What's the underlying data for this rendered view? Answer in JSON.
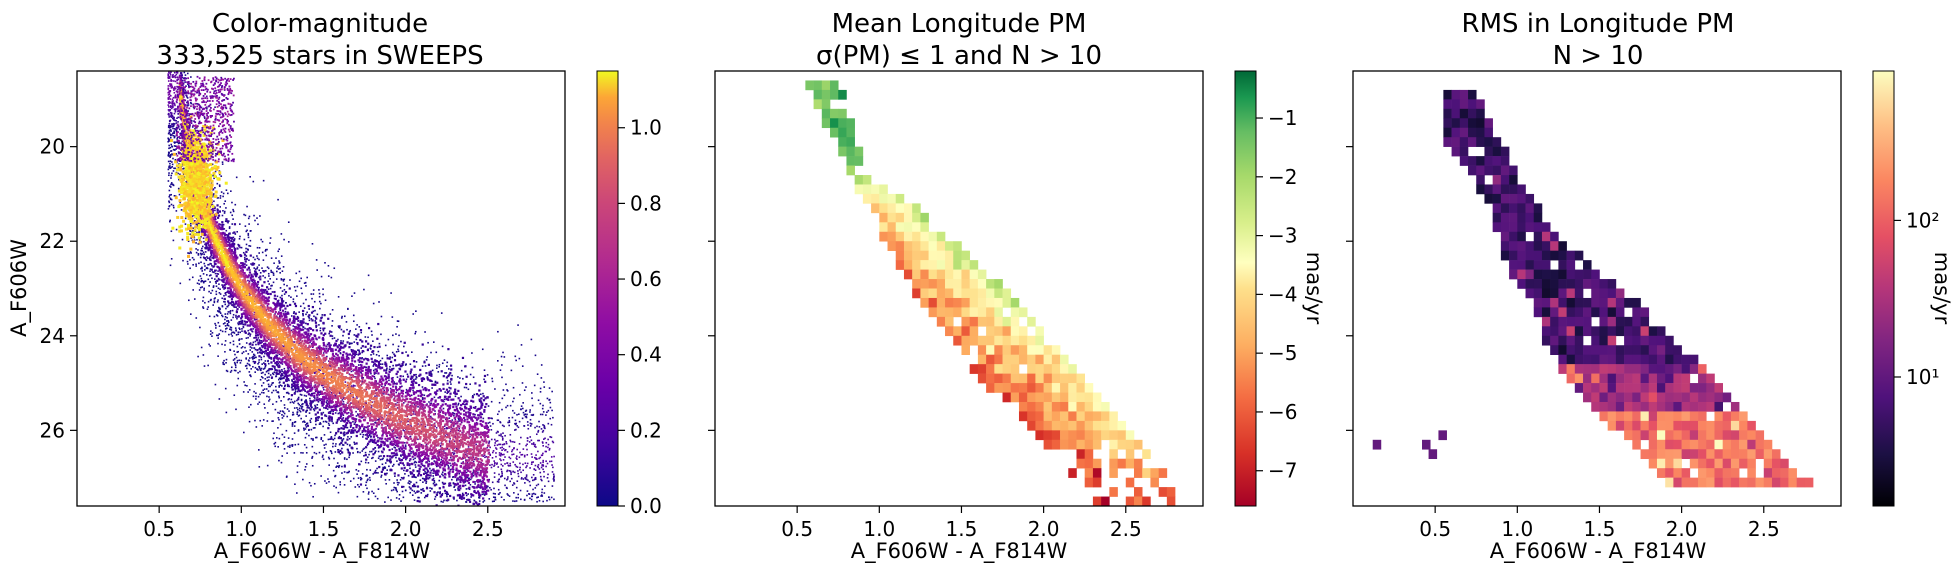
{
  "chart_data": [
    {
      "type": "scatter",
      "title_lines": [
        "Color-magnitude",
        "333,525 stars in SWEEPS"
      ],
      "xlabel": "A_F606W - A_F814W",
      "ylabel": "A_F606W",
      "xlim": [
        0.0,
        2.97
      ],
      "ylim": [
        27.6,
        18.4
      ],
      "x_ticks": [
        0.5,
        1.0,
        1.5,
        2.0,
        2.5
      ],
      "x_tick_labels": [
        "0.5",
        "1.0",
        "1.5",
        "2.0",
        "2.5"
      ],
      "y_ticks": [
        20,
        22,
        24,
        26
      ],
      "y_tick_labels": [
        "20",
        "22",
        "24",
        "26"
      ],
      "colormap": "plasma",
      "colorbar": {
        "range": [
          0.0,
          1.15
        ],
        "ticks": [
          0.0,
          0.2,
          0.4,
          0.6,
          0.8,
          1.0
        ],
        "tick_labels": [
          "0.0",
          "0.2",
          "0.4",
          "0.6",
          "0.8",
          "1.0"
        ],
        "label": ""
      },
      "ridge": {
        "x": [
          0.62,
          0.66,
          0.7,
          0.75,
          0.82,
          0.9,
          1.0,
          1.15,
          1.35,
          1.55,
          1.75,
          1.95,
          2.15,
          2.35,
          2.5
        ],
        "y": [
          18.8,
          19.8,
          20.6,
          21.2,
          21.8,
          22.4,
          23.0,
          23.7,
          24.4,
          24.9,
          25.3,
          25.7,
          26.0,
          26.3,
          26.5
        ]
      },
      "stars_total": 333525
    },
    {
      "type": "heatmap",
      "title_lines": [
        "Mean Longitude PM",
        "σ(PM) ≤ 1 and N > 10"
      ],
      "xlabel": "A_F606W - A_F814W",
      "xlim": [
        0.0,
        2.97
      ],
      "ylim": [
        27.6,
        18.4
      ],
      "x_ticks": [
        0.5,
        1.0,
        1.5,
        2.0,
        2.5
      ],
      "x_tick_labels": [
        "0.5",
        "1.0",
        "1.5",
        "2.0",
        "2.5"
      ],
      "colormap": "RdYlGn",
      "colorbar": {
        "range": [
          -7.6,
          -0.2
        ],
        "ticks": [
          -7,
          -6,
          -5,
          -4,
          -3,
          -2,
          -1
        ],
        "tick_labels": [
          "−7",
          "−6",
          "−5",
          "−4",
          "−3",
          "−2",
          "−1"
        ],
        "label": "mas/yr"
      },
      "bin_size": {
        "x": 0.05,
        "y": 0.2
      },
      "value_model": {
        "x_start": [
          0.55,
          0.62,
          0.72,
          0.8,
          0.9,
          1.0,
          1.1,
          1.2,
          1.35,
          1.5,
          1.65,
          1.85,
          2.0,
          2.15,
          2.3
        ],
        "x_end": [
          0.8,
          0.8,
          0.85,
          0.9,
          1.2,
          1.4,
          1.6,
          1.8,
          1.95,
          2.1,
          2.3,
          2.45,
          2.6,
          2.75,
          2.8
        ],
        "y_start": 18.6,
        "green_band_x": [
          1.0,
          1.2,
          1.4,
          1.6,
          1.8,
          2.0,
          2.2,
          2.4
        ],
        "green_band_y": [
          21.0,
          21.6,
          22.4,
          23.0,
          23.6,
          24.2,
          24.8,
          25.4
        ]
      }
    },
    {
      "type": "heatmap",
      "title_lines": [
        "RMS in Longitude PM",
        "N > 10"
      ],
      "xlabel": "A_F606W - A_F814W",
      "xlim": [
        0.0,
        2.97
      ],
      "ylim": [
        27.6,
        18.4
      ],
      "x_ticks": [
        0.5,
        1.0,
        1.5,
        2.0,
        2.5
      ],
      "x_tick_labels": [
        "0.5",
        "1.0",
        "1.5",
        "2.0",
        "2.5"
      ],
      "colormap": "magma",
      "colorbar": {
        "scale": "log",
        "range": [
          1.5,
          900
        ],
        "ticks": [
          10,
          100
        ],
        "tick_labels": [
          "10¹",
          "10²"
        ],
        "label": "mas/yr"
      },
      "bin_size": {
        "x": 0.05,
        "y": 0.2
      },
      "value_model": {
        "x_start": [
          0.55,
          0.55,
          0.55,
          0.7,
          0.8,
          0.85,
          0.9,
          1.0,
          1.1,
          1.15,
          1.25,
          1.4,
          1.55,
          1.75,
          1.9
        ],
        "x_end": [
          0.75,
          0.8,
          0.9,
          1.0,
          1.1,
          1.2,
          1.4,
          1.6,
          1.8,
          1.95,
          2.15,
          2.3,
          2.45,
          2.6,
          2.75
        ]
      }
    }
  ]
}
